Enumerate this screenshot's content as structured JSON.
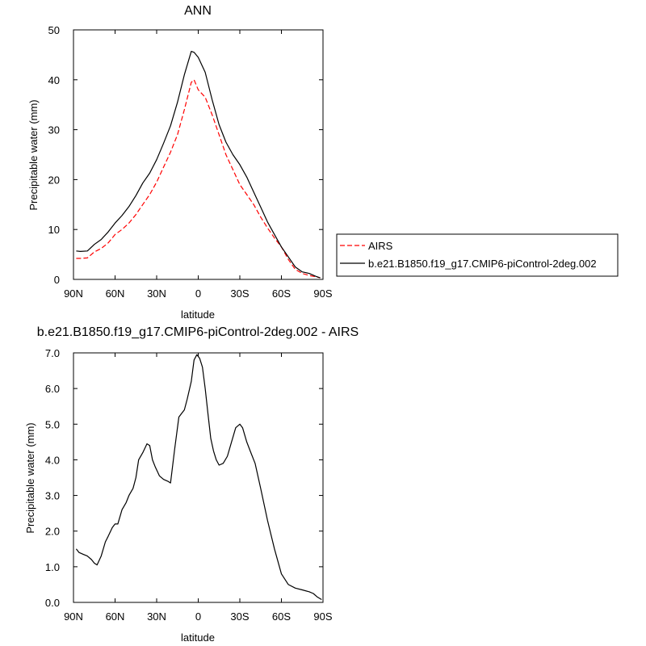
{
  "chart_data": [
    {
      "type": "line",
      "title": "ANN",
      "xlabel": "latitude",
      "ylabel": "Precipitable water (mm)",
      "x_tick_labels": [
        "90N",
        "60N",
        "30N",
        "0",
        "30S",
        "60S",
        "90S"
      ],
      "x_ticks": [
        90,
        60,
        30,
        0,
        -30,
        -60,
        -90
      ],
      "y_tick_labels": [
        "0",
        "10",
        "20",
        "30",
        "40",
        "50"
      ],
      "y_ticks": [
        0,
        10,
        20,
        30,
        40,
        50
      ],
      "xlim": [
        90,
        -90
      ],
      "ylim": [
        0,
        50
      ],
      "legend_position": "right",
      "series": [
        {
          "name": "AIRS",
          "color": "#ff0000",
          "dash": "dashed",
          "x": [
            88,
            85,
            80,
            75,
            70,
            65,
            60,
            55,
            50,
            45,
            40,
            35,
            30,
            25,
            20,
            15,
            10,
            5,
            3,
            0,
            -5,
            -10,
            -15,
            -20,
            -25,
            -30,
            -35,
            -40,
            -45,
            -50,
            -55,
            -60,
            -65,
            -70,
            -75,
            -80,
            -85,
            -88
          ],
          "y": [
            4.2,
            4.2,
            4.3,
            5.5,
            6.2,
            7.3,
            9.0,
            10.0,
            11.3,
            13.0,
            15.0,
            17.0,
            19.5,
            22.5,
            25.5,
            29.0,
            34.0,
            39.5,
            40.0,
            38.0,
            36.5,
            33.0,
            29.0,
            25.0,
            22.0,
            19.0,
            17.0,
            15.0,
            12.5,
            10.3,
            8.3,
            6.5,
            4.0,
            2.0,
            1.2,
            0.8,
            0.5,
            0.3
          ]
        },
        {
          "name": "b.e21.B1850.f19_g17.CMIP6-piControl-2deg.002",
          "color": "#000000",
          "dash": "solid",
          "x": [
            88,
            85,
            80,
            75,
            70,
            65,
            60,
            55,
            50,
            45,
            40,
            35,
            30,
            25,
            20,
            15,
            10,
            5,
            3,
            0,
            -5,
            -10,
            -15,
            -20,
            -25,
            -30,
            -35,
            -40,
            -45,
            -50,
            -55,
            -60,
            -65,
            -70,
            -75,
            -80,
            -85,
            -88
          ],
          "y": [
            5.7,
            5.6,
            5.7,
            7.0,
            8.0,
            9.5,
            11.3,
            12.8,
            14.6,
            16.8,
            19.3,
            21.3,
            24.0,
            27.3,
            30.8,
            35.5,
            41.0,
            45.7,
            45.5,
            44.5,
            41.5,
            36.0,
            31.0,
            27.5,
            25.0,
            23.0,
            20.5,
            17.5,
            14.5,
            11.5,
            9.0,
            6.5,
            4.5,
            2.5,
            1.5,
            1.2,
            0.6,
            0.3
          ]
        }
      ]
    },
    {
      "type": "line",
      "title": "b.e21.B1850.f19_g17.CMIP6-piControl-2deg.002 - AIRS",
      "xlabel": "latitude",
      "ylabel": "Precipitable water (mm)",
      "x_tick_labels": [
        "90N",
        "60N",
        "30N",
        "0",
        "30S",
        "60S",
        "90S"
      ],
      "x_ticks": [
        90,
        60,
        30,
        0,
        -30,
        -60,
        -90
      ],
      "y_tick_labels": [
        "0.0",
        "1.0",
        "2.0",
        "3.0",
        "4.0",
        "5.0",
        "6.0",
        "7.0"
      ],
      "y_ticks": [
        0,
        1,
        2,
        3,
        4,
        5,
        6,
        7
      ],
      "xlim": [
        90,
        -90
      ],
      "ylim": [
        0,
        7
      ],
      "series": [
        {
          "color": "#000000",
          "dash": "solid",
          "x": [
            88,
            86,
            83,
            80,
            77,
            75,
            73,
            70,
            67,
            65,
            62,
            60,
            58,
            55,
            52,
            50,
            47,
            45,
            43,
            40,
            37,
            35,
            33,
            31,
            28,
            25,
            22,
            20,
            17,
            14,
            12,
            10,
            8,
            5,
            3,
            1,
            -1,
            -3,
            -5,
            -7,
            -9,
            -11,
            -13,
            -15,
            -18,
            -21,
            -24,
            -27,
            -30,
            -32,
            -35,
            -38,
            -41,
            -45,
            -50,
            -55,
            -60,
            -65,
            -70,
            -75,
            -80,
            -83,
            -86,
            -89
          ],
          "y": [
            1.5,
            1.4,
            1.35,
            1.3,
            1.2,
            1.1,
            1.05,
            1.3,
            1.7,
            1.85,
            2.1,
            2.2,
            2.2,
            2.6,
            2.8,
            3.0,
            3.2,
            3.5,
            4.0,
            4.2,
            4.45,
            4.4,
            4.0,
            3.8,
            3.55,
            3.45,
            3.4,
            3.35,
            4.3,
            5.2,
            5.3,
            5.4,
            5.7,
            6.2,
            6.8,
            6.95,
            6.85,
            6.6,
            6.0,
            5.3,
            4.6,
            4.25,
            4.0,
            3.85,
            3.9,
            4.1,
            4.5,
            4.9,
            5.0,
            4.9,
            4.5,
            4.2,
            3.9,
            3.2,
            2.3,
            1.5,
            0.8,
            0.5,
            0.4,
            0.35,
            0.3,
            0.25,
            0.15,
            0.08
          ]
        }
      ]
    }
  ],
  "legend": {
    "entries": [
      "AIRS",
      "b.e21.B1850.f19_g17.CMIP6-piControl-2deg.002"
    ]
  }
}
